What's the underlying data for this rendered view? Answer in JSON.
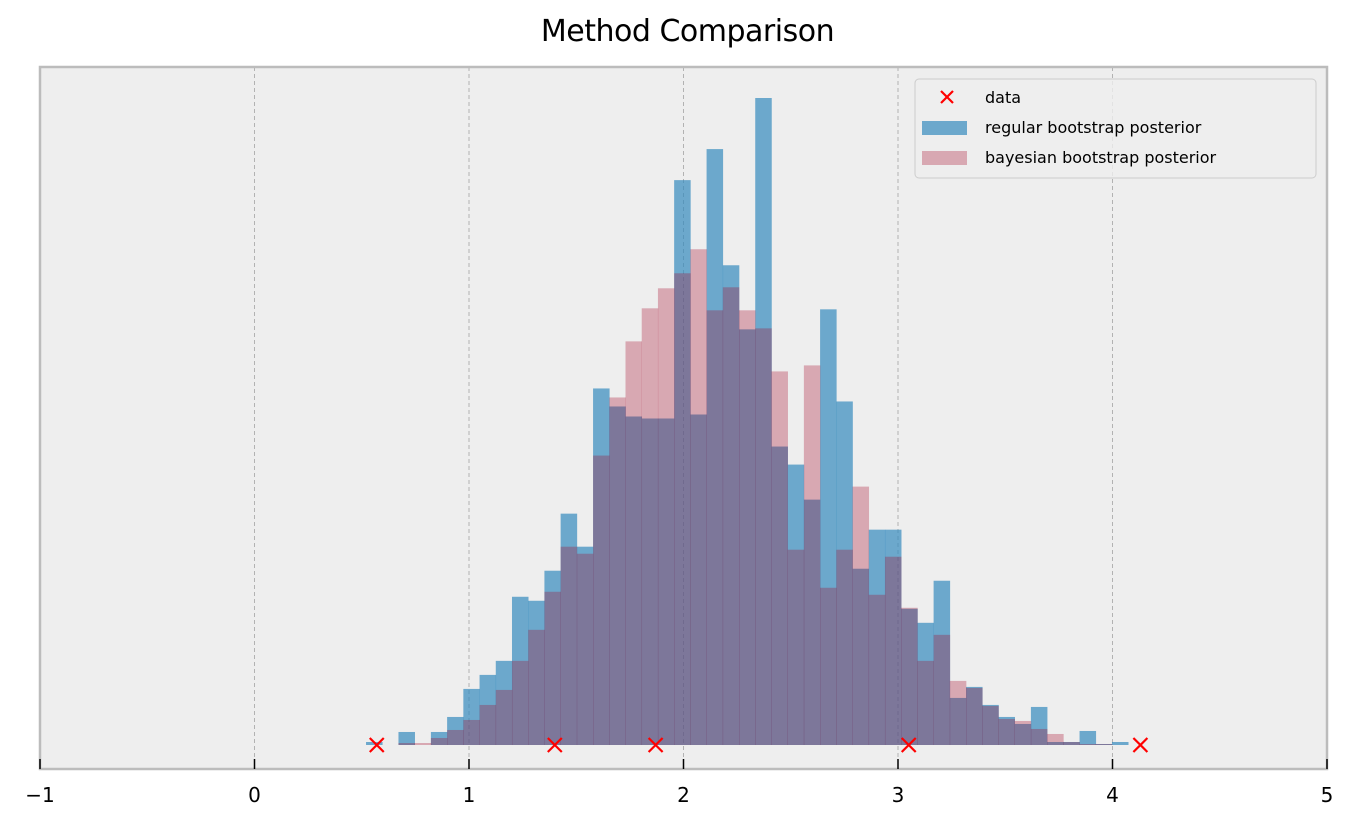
{
  "chart_data": {
    "type": "bar",
    "title": "Method Comparison",
    "xlabel": "",
    "ylabel": "",
    "xlim": [
      -1,
      5
    ],
    "xticks": [
      -1,
      0,
      1,
      2,
      3,
      4,
      5
    ],
    "xtick_labels": [
      "−1",
      "0",
      "1",
      "2",
      "3",
      "4",
      "5"
    ],
    "yticks_visible": false,
    "grid": {
      "x": true,
      "y": false,
      "style": "dashed"
    },
    "legend_position": "upper right",
    "legend": [
      {
        "label": "data",
        "marker": "x",
        "color": "#ff0000"
      },
      {
        "label": "regular bootstrap posterior",
        "color": "#348abd",
        "alpha": 0.7
      },
      {
        "label": "bayesian bootstrap posterior",
        "color": "#a60628",
        "alpha": 0.3
      }
    ],
    "data_points_x": [
      0.57,
      1.4,
      1.87,
      3.05,
      4.13
    ],
    "bin_start": 0.52,
    "bin_width": 0.0756,
    "series": [
      {
        "name": "regular bootstrap posterior",
        "color": "#348abd",
        "values": [
          3,
          0,
          13,
          0,
          13,
          28,
          56,
          70,
          84,
          148,
          144,
          174,
          231,
          198,
          356,
          338,
          328,
          326,
          326,
          564,
          330,
          595,
          479,
          415,
          646,
          298,
          280,
          245,
          435,
          343,
          176,
          215,
          215,
          136,
          122,
          164,
          47,
          58,
          40,
          28,
          21,
          38,
          3,
          3,
          14,
          1,
          3
        ]
      },
      {
        "name": "bayesian bootstrap posterior",
        "color": "#a60628",
        "values": [
          0,
          0,
          2,
          2,
          7,
          15,
          25,
          40,
          55,
          84,
          115,
          153,
          198,
          191,
          289,
          347,
          403,
          436,
          456,
          471,
          495,
          434,
          457,
          434,
          416,
          373,
          195,
          379,
          157,
          195,
          258,
          150,
          188,
          137,
          84,
          110,
          64,
          57,
          39,
          26,
          24,
          16,
          11,
          3,
          1,
          1,
          0
        ]
      }
    ]
  }
}
